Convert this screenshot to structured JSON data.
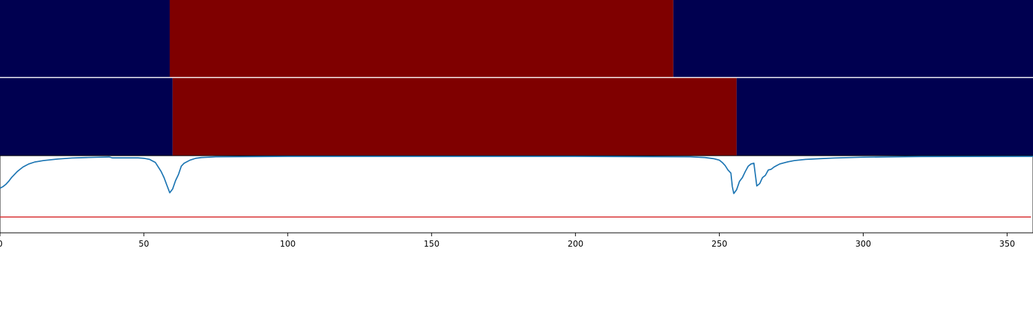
{
  "chart_data": {
    "type": "heatmap",
    "title": "",
    "xlabel": "",
    "ylabel": "",
    "xlim": [
      0,
      359
    ],
    "x_ticks": [
      0,
      50,
      100,
      150,
      200,
      250,
      300,
      350
    ],
    "x_tick_labels": [
      "0",
      "50",
      "100",
      "150",
      "200",
      "250",
      "300",
      "350"
    ],
    "colors": {
      "low": "#000050",
      "high": "#7f0000",
      "line": "#1f77b4",
      "threshold": "#d62728",
      "frame": "#000000",
      "divider": "#ffffff"
    },
    "segment_rows": [
      {
        "segments": [
          {
            "start": 0,
            "end": 59,
            "state": "low"
          },
          {
            "start": 59,
            "end": 234,
            "state": "high"
          },
          {
            "start": 234,
            "end": 359,
            "state": "low"
          }
        ]
      },
      {
        "segments": [
          {
            "start": 0,
            "end": 60,
            "state": "low"
          },
          {
            "start": 60,
            "end": 256,
            "state": "high"
          },
          {
            "start": 256,
            "end": 359,
            "state": "low"
          }
        ]
      }
    ],
    "line_panel": {
      "ylim": [
        0,
        1
      ],
      "threshold": 0.2,
      "series": [
        {
          "x": 0,
          "y": 0.58
        },
        {
          "x": 1,
          "y": 0.6
        },
        {
          "x": 2,
          "y": 0.63
        },
        {
          "x": 3,
          "y": 0.67
        },
        {
          "x": 4,
          "y": 0.72
        },
        {
          "x": 5,
          "y": 0.76
        },
        {
          "x": 6,
          "y": 0.8
        },
        {
          "x": 7,
          "y": 0.83
        },
        {
          "x": 8,
          "y": 0.86
        },
        {
          "x": 9,
          "y": 0.88
        },
        {
          "x": 10,
          "y": 0.9
        },
        {
          "x": 12,
          "y": 0.925
        },
        {
          "x": 15,
          "y": 0.945
        },
        {
          "x": 20,
          "y": 0.965
        },
        {
          "x": 25,
          "y": 0.978
        },
        {
          "x": 30,
          "y": 0.985
        },
        {
          "x": 35,
          "y": 0.99
        },
        {
          "x": 38,
          "y": 0.993
        },
        {
          "x": 39,
          "y": 0.98
        },
        {
          "x": 48,
          "y": 0.98
        },
        {
          "x": 50,
          "y": 0.975
        },
        {
          "x": 52,
          "y": 0.96
        },
        {
          "x": 54,
          "y": 0.92
        },
        {
          "x": 56,
          "y": 0.8
        },
        {
          "x": 57,
          "y": 0.72
        },
        {
          "x": 58,
          "y": 0.62
        },
        {
          "x": 59,
          "y": 0.52
        },
        {
          "x": 60,
          "y": 0.57
        },
        {
          "x": 61,
          "y": 0.68
        },
        {
          "x": 62,
          "y": 0.76
        },
        {
          "x": 63,
          "y": 0.87
        },
        {
          "x": 64,
          "y": 0.91
        },
        {
          "x": 66,
          "y": 0.95
        },
        {
          "x": 68,
          "y": 0.975
        },
        {
          "x": 70,
          "y": 0.985
        },
        {
          "x": 75,
          "y": 0.995
        },
        {
          "x": 100,
          "y": 1.0
        },
        {
          "x": 200,
          "y": 1.0
        },
        {
          "x": 240,
          "y": 0.995
        },
        {
          "x": 245,
          "y": 0.985
        },
        {
          "x": 248,
          "y": 0.97
        },
        {
          "x": 250,
          "y": 0.95
        },
        {
          "x": 251,
          "y": 0.92
        },
        {
          "x": 252,
          "y": 0.88
        },
        {
          "x": 253,
          "y": 0.82
        },
        {
          "x": 254,
          "y": 0.78
        },
        {
          "x": 254.5,
          "y": 0.6
        },
        {
          "x": 255,
          "y": 0.51
        },
        {
          "x": 256,
          "y": 0.56
        },
        {
          "x": 257,
          "y": 0.67
        },
        {
          "x": 258,
          "y": 0.72
        },
        {
          "x": 259,
          "y": 0.8
        },
        {
          "x": 260,
          "y": 0.87
        },
        {
          "x": 261,
          "y": 0.9
        },
        {
          "x": 262,
          "y": 0.91
        },
        {
          "x": 263,
          "y": 0.61
        },
        {
          "x": 264,
          "y": 0.64
        },
        {
          "x": 265,
          "y": 0.72
        },
        {
          "x": 266,
          "y": 0.75
        },
        {
          "x": 267,
          "y": 0.82
        },
        {
          "x": 268,
          "y": 0.83
        },
        {
          "x": 269,
          "y": 0.86
        },
        {
          "x": 270,
          "y": 0.88
        },
        {
          "x": 271,
          "y": 0.9
        },
        {
          "x": 272,
          "y": 0.91
        },
        {
          "x": 274,
          "y": 0.93
        },
        {
          "x": 276,
          "y": 0.945
        },
        {
          "x": 280,
          "y": 0.96
        },
        {
          "x": 285,
          "y": 0.97
        },
        {
          "x": 290,
          "y": 0.978
        },
        {
          "x": 300,
          "y": 0.99
        },
        {
          "x": 320,
          "y": 0.998
        },
        {
          "x": 359,
          "y": 1.0
        }
      ]
    }
  }
}
